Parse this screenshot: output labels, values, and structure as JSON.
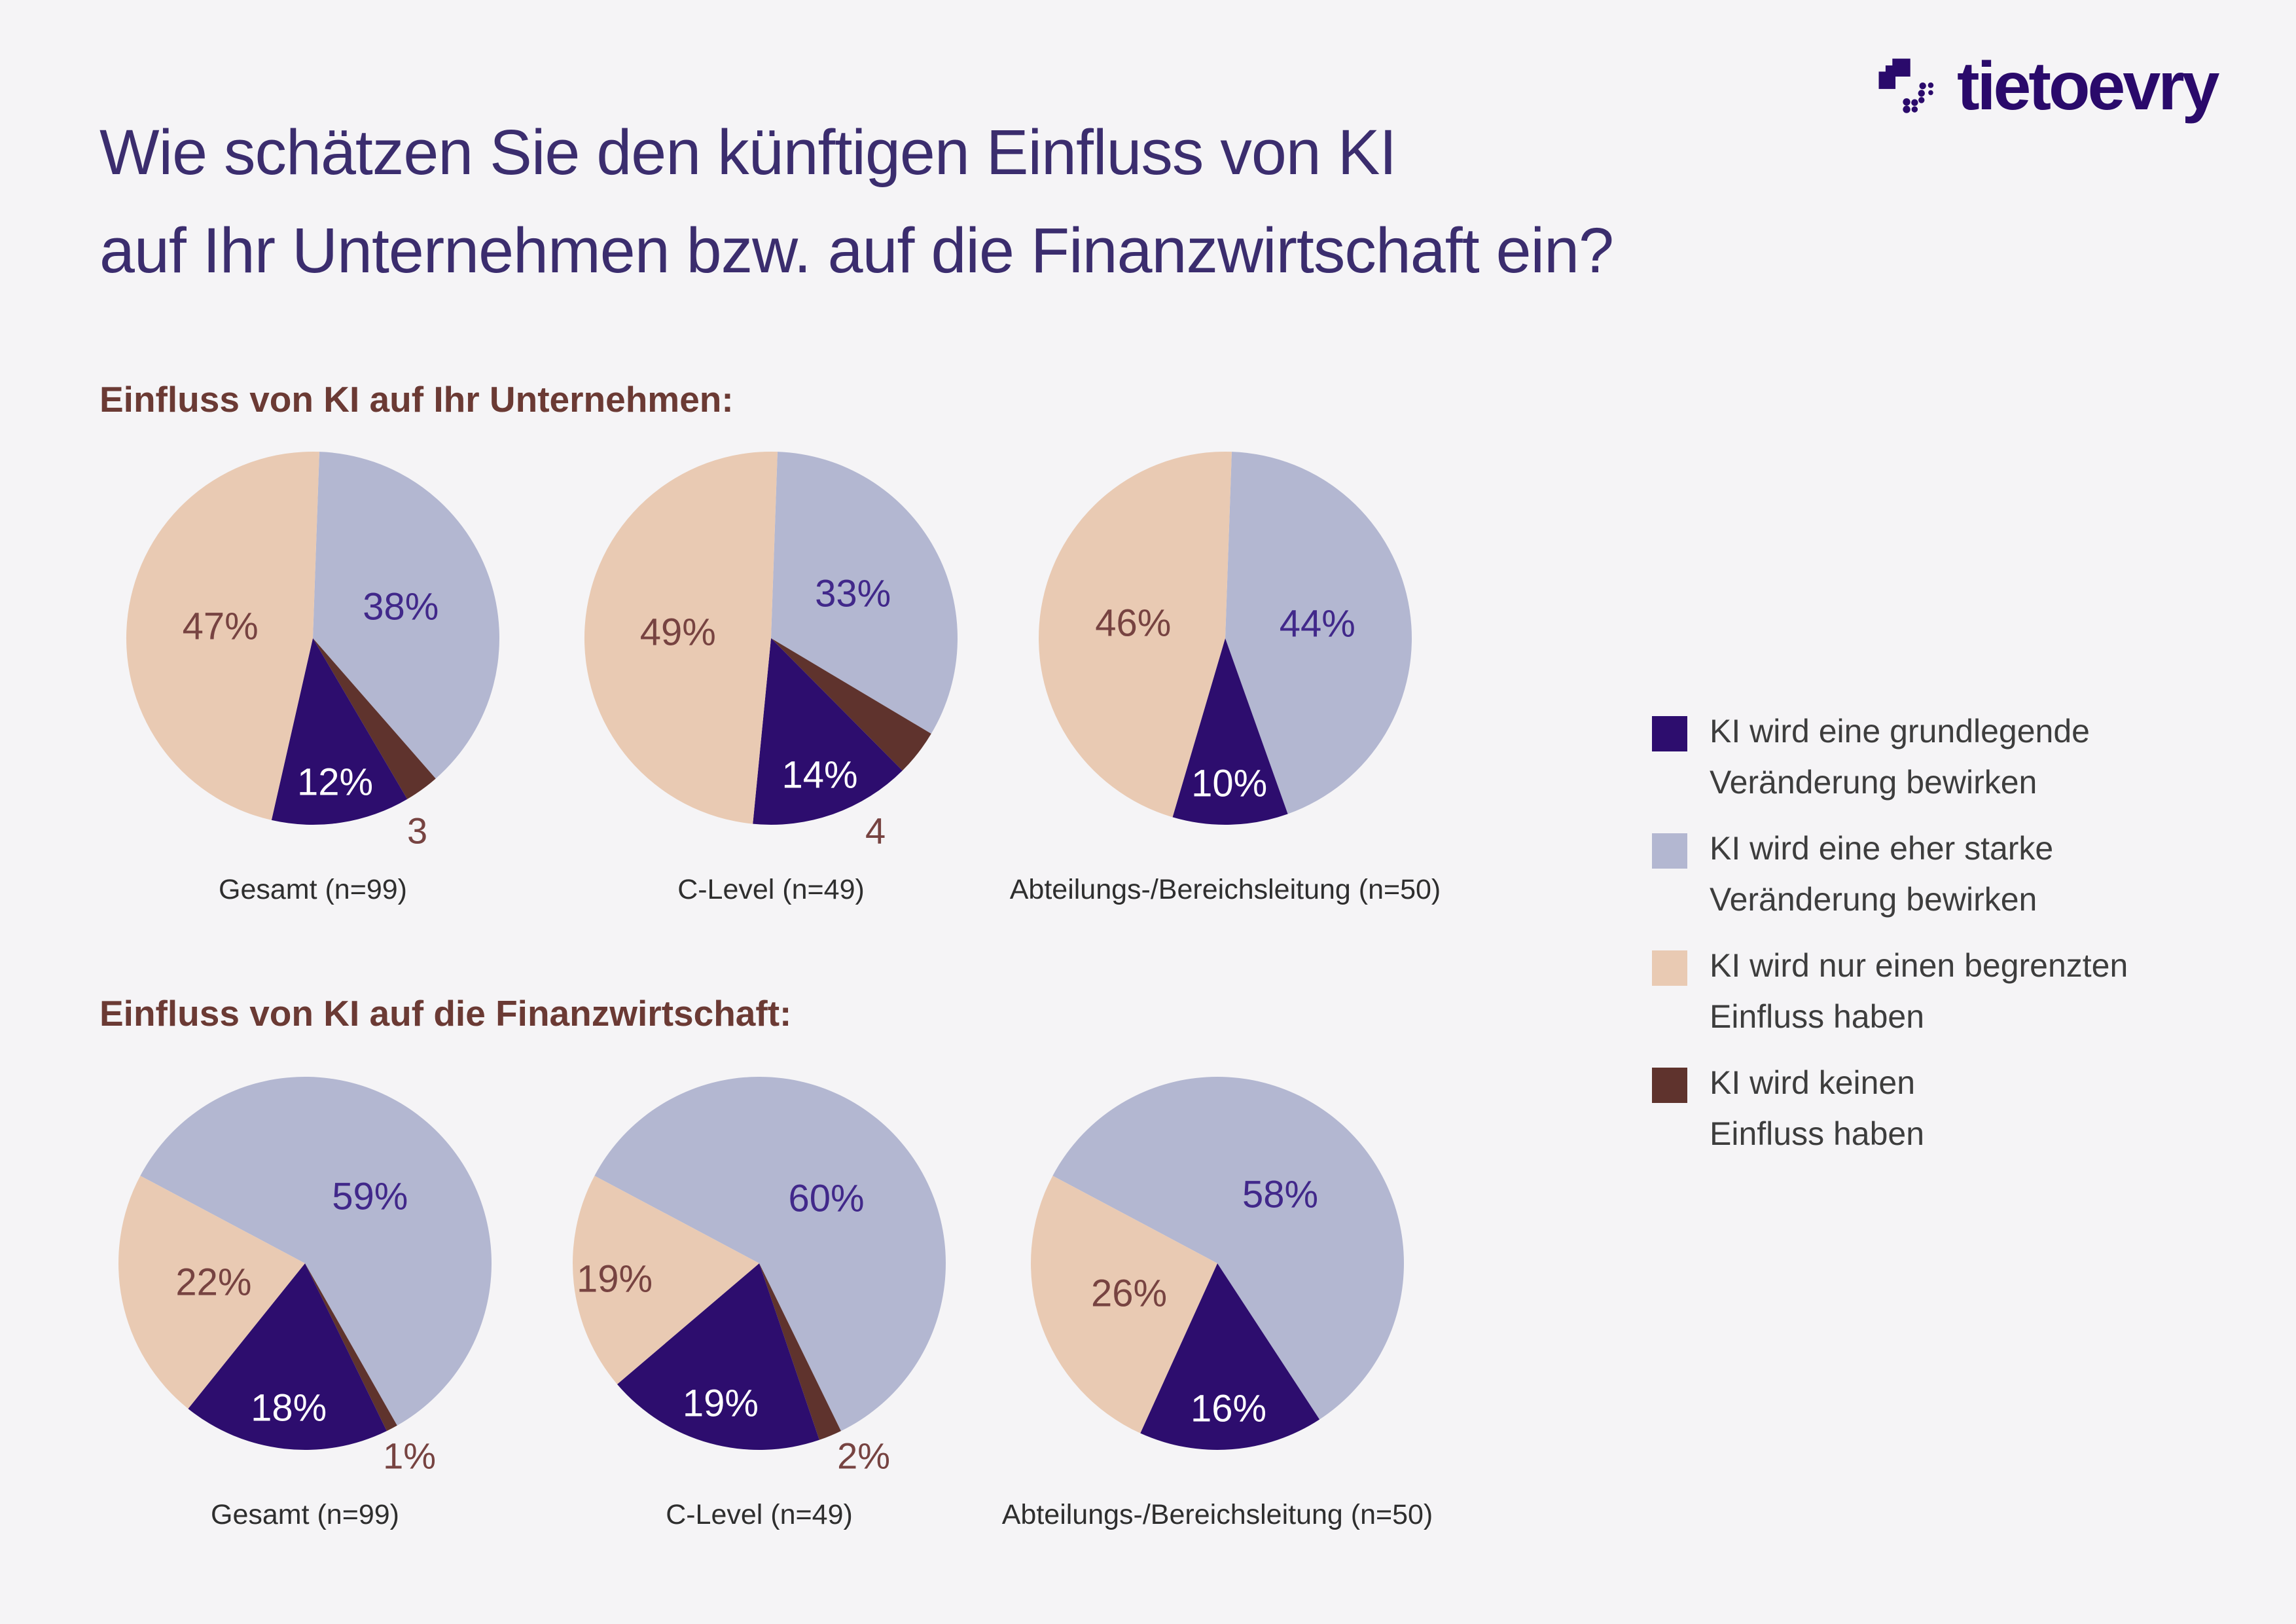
{
  "logo": {
    "wordmark": "tietoevry"
  },
  "title": {
    "line1": "Wie schätzen Sie den künftigen Einfluss von KI",
    "line2": "auf Ihr Unternehmen bzw. auf die Finanzwirtschaft ein?"
  },
  "colors": {
    "background": "#f5f4f6",
    "title_text": "#3b2d6e",
    "heading_text": "#6b3a34",
    "caption_text": "#2e2e2e",
    "legend_text": "#3d3d3d",
    "brand_purple": "#2a0a6b"
  },
  "chart_data": {
    "type": "pie",
    "unit": "percent",
    "grid": false,
    "legend_position": "right",
    "colors": {
      "grundlegende": "#2d0d6e",
      "starke": "#b3b7d1",
      "begrenzt": "#e9cab3",
      "keinen": "#5f332d"
    },
    "legend": [
      {
        "key": "grundlegende",
        "lines": [
          "KI wird eine grundlegende",
          "Veränderung bewirken"
        ]
      },
      {
        "key": "starke",
        "lines": [
          "KI wird eine eher starke",
          "Veränderung bewirken"
        ]
      },
      {
        "key": "begrenzt",
        "lines": [
          "KI wird nur einen begrenzten",
          "Einfluss haben"
        ]
      },
      {
        "key": "keinen",
        "lines": [
          "KI wird keinen",
          "Einfluss haben"
        ]
      }
    ],
    "sections": [
      {
        "heading": "Einfluss von KI auf Ihr Unternehmen:",
        "pies": [
          {
            "caption": "Gesamt (n=99)",
            "start_angle": 2,
            "slices": [
              {
                "key": "starke",
                "value": 38,
                "label": "38%"
              },
              {
                "key": "keinen",
                "value": 3,
                "label": "3",
                "label_outside": true
              },
              {
                "key": "grundlegende",
                "value": 12,
                "label": "12%"
              },
              {
                "key": "begrenzt",
                "value": 47,
                "label": "47%"
              }
            ]
          },
          {
            "caption": "C-Level (n=49)",
            "start_angle": 2,
            "slices": [
              {
                "key": "starke",
                "value": 33,
                "label": "33%"
              },
              {
                "key": "keinen",
                "value": 4,
                "label": "4",
                "label_outside": true
              },
              {
                "key": "grundlegende",
                "value": 14,
                "label": "14%"
              },
              {
                "key": "begrenzt",
                "value": 49,
                "label": "49%"
              }
            ]
          },
          {
            "caption": "Abteilungs-/Bereichsleitung (n=50)",
            "start_angle": 2,
            "slices": [
              {
                "key": "starke",
                "value": 44,
                "label": "44%"
              },
              {
                "key": "grundlegende",
                "value": 10,
                "label": "10%"
              },
              {
                "key": "begrenzt",
                "value": 46,
                "label": "46%"
              }
            ]
          }
        ]
      },
      {
        "heading": "Einfluss von KI auf die Finanzwirtschaft:",
        "pies": [
          {
            "caption": "Gesamt (n=99)",
            "start_angle": -62,
            "slices": [
              {
                "key": "starke",
                "value": 59,
                "label": "59%"
              },
              {
                "key": "keinen",
                "value": 1,
                "label": "1%",
                "label_outside": true
              },
              {
                "key": "grundlegende",
                "value": 18,
                "label": "18%"
              },
              {
                "key": "begrenzt",
                "value": 22,
                "label": "22%"
              }
            ]
          },
          {
            "caption": "C-Level (n=49)",
            "start_angle": -62,
            "slices": [
              {
                "key": "starke",
                "value": 60,
                "label": "60%"
              },
              {
                "key": "keinen",
                "value": 2,
                "label": "2%",
                "label_outside": true
              },
              {
                "key": "grundlegende",
                "value": 19,
                "label": "19%"
              },
              {
                "key": "begrenzt",
                "value": 19,
                "label": "19%"
              }
            ]
          },
          {
            "caption": "Abteilungs-/Bereichsleitung (n=50)",
            "start_angle": -62,
            "slices": [
              {
                "key": "starke",
                "value": 58,
                "label": "58%"
              },
              {
                "key": "grundlegende",
                "value": 16,
                "label": "16%"
              },
              {
                "key": "begrenzt",
                "value": 26,
                "label": "26%"
              }
            ]
          }
        ]
      }
    ]
  }
}
